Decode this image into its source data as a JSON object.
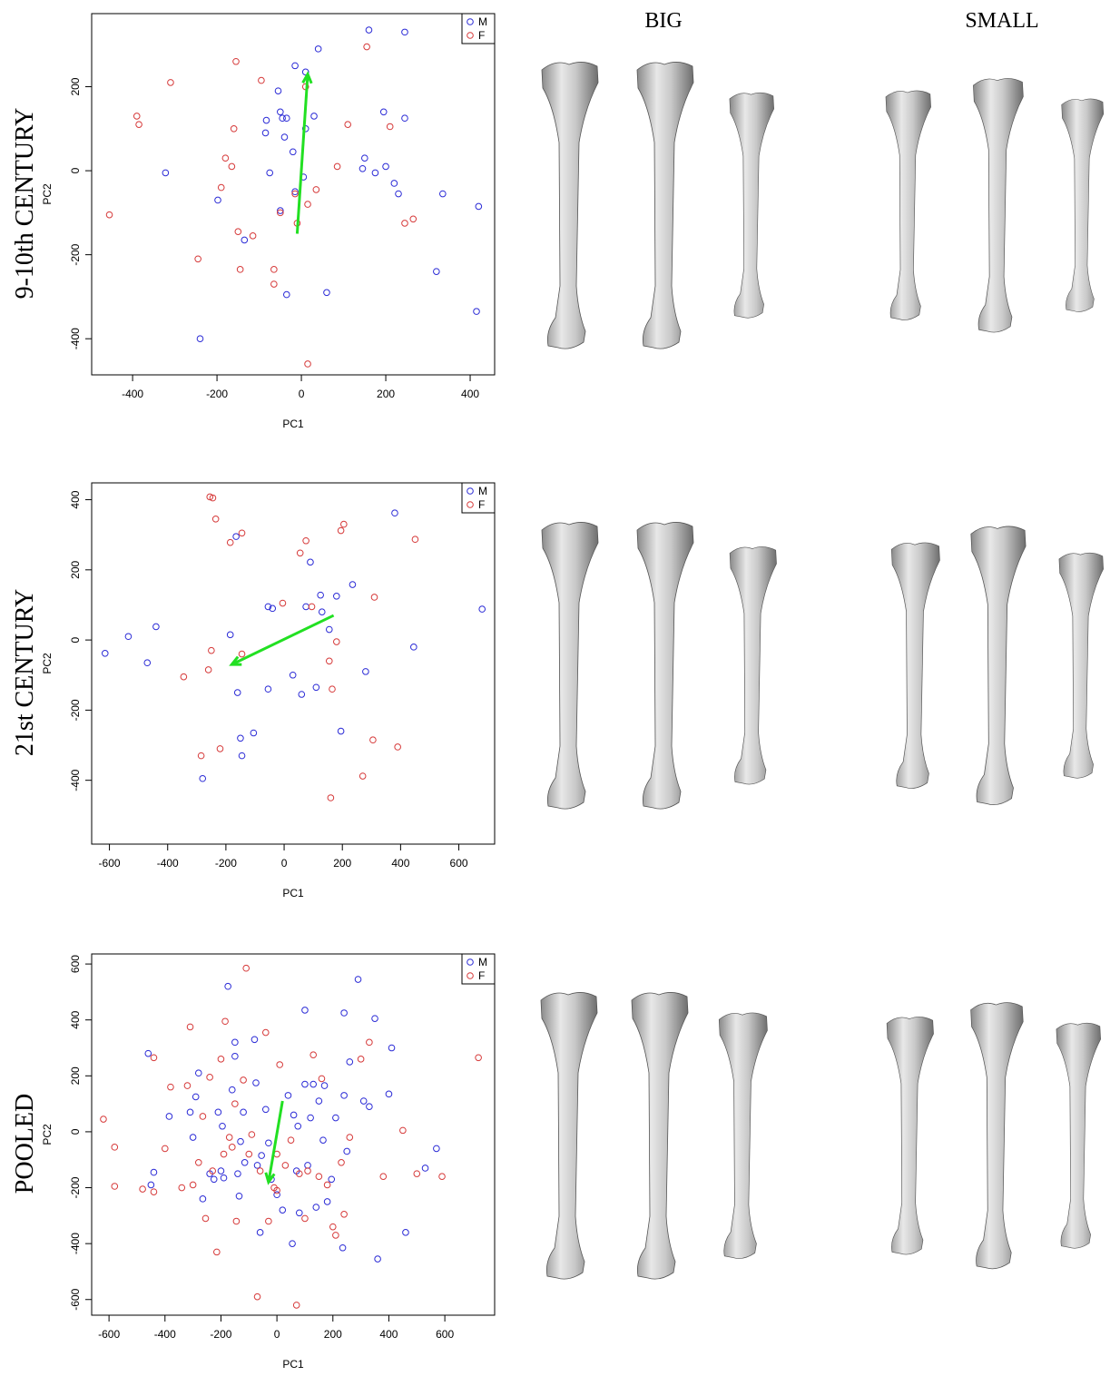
{
  "column_headers": [
    "BIG",
    "SMALL"
  ],
  "chart_data": [
    {
      "type": "scatter",
      "title": "9-10th CENTURY",
      "x_label": "PC1",
      "y_label": "PC2",
      "xlim": [
        -497,
        458
      ],
      "ylim": [
        -486,
        374
      ],
      "xticks": [
        -400,
        -200,
        0,
        200,
        400
      ],
      "yticks": [
        -400,
        -200,
        0,
        200
      ],
      "series": [
        {
          "name": "M",
          "color": "#2b2bd6",
          "x": [
            -322,
            -240,
            -198,
            -135,
            -85,
            -83,
            -75,
            -55,
            -50,
            -45,
            -40,
            -35,
            -50,
            -35,
            -20,
            -15,
            5,
            10,
            10,
            30,
            40,
            60,
            160,
            245,
            145,
            150,
            175,
            195,
            200,
            220,
            230,
            245,
            335,
            320,
            420,
            415,
            -15
          ],
          "values": [
            -5,
            -400,
            -70,
            -165,
            90,
            120,
            -5,
            190,
            140,
            125,
            80,
            125,
            -95,
            -295,
            45,
            250,
            -15,
            235,
            100,
            130,
            290,
            -290,
            335,
            330,
            5,
            30,
            -5,
            140,
            10,
            -30,
            -55,
            125,
            -55,
            -240,
            -85,
            -335,
            -50
          ]
        },
        {
          "name": "F",
          "color": "#d63a3a",
          "x": [
            -455,
            -390,
            -385,
            -310,
            -245,
            -190,
            -180,
            -165,
            -155,
            -160,
            -150,
            -145,
            -115,
            -95,
            -65,
            -65,
            -50,
            -15,
            -10,
            10,
            15,
            15,
            35,
            85,
            110,
            155,
            210,
            245,
            265
          ],
          "values": [
            -105,
            130,
            110,
            210,
            -210,
            -40,
            30,
            10,
            260,
            100,
            -145,
            -235,
            -155,
            215,
            -235,
            -270,
            -100,
            -55,
            -125,
            200,
            -80,
            -460,
            -45,
            10,
            110,
            295,
            105,
            -125,
            -115
          ]
        }
      ],
      "arrow": {
        "color": "#22e022",
        "x": [
          -10,
          15
        ],
        "y": [
          -150,
          230
        ]
      }
    },
    {
      "type": "scatter",
      "title": "21st CENTURY",
      "x_label": "PC1",
      "y_label": "PC2",
      "xlim": [
        -661,
        723
      ],
      "ylim": [
        -582,
        448
      ],
      "xticks": [
        -600,
        -400,
        -200,
        0,
        200,
        400,
        600
      ],
      "yticks": [
        -400,
        -200,
        0,
        200,
        400
      ],
      "series": [
        {
          "name": "M",
          "color": "#2b2bd6",
          "x": [
            -615,
            -535,
            -470,
            -440,
            -280,
            -185,
            -165,
            -160,
            -150,
            -145,
            -105,
            -55,
            -40,
            -55,
            30,
            60,
            75,
            90,
            110,
            125,
            130,
            155,
            180,
            195,
            235,
            280,
            380,
            445,
            680
          ],
          "values": [
            -38,
            10,
            -65,
            38,
            -395,
            15,
            295,
            -150,
            -280,
            -330,
            -265,
            95,
            90,
            -140,
            -100,
            -155,
            95,
            222,
            -135,
            128,
            80,
            30,
            125,
            -260,
            158,
            -90,
            362,
            -20,
            88
          ]
        },
        {
          "name": "F",
          "color": "#d63a3a",
          "x": [
            -345,
            -285,
            -255,
            -245,
            -260,
            -250,
            -235,
            -220,
            -185,
            -145,
            -145,
            -5,
            55,
            75,
            95,
            155,
            160,
            165,
            180,
            195,
            205,
            270,
            305,
            310,
            390,
            450
          ],
          "values": [
            -105,
            -330,
            408,
            405,
            -85,
            -30,
            345,
            -310,
            278,
            -40,
            305,
            105,
            248,
            283,
            95,
            -60,
            -450,
            -140,
            -5,
            312,
            330,
            -388,
            -285,
            122,
            -305,
            287
          ]
        }
      ],
      "arrow": {
        "color": "#22e022",
        "x": [
          170,
          -180
        ],
        "y": [
          70,
          -70
        ]
      }
    },
    {
      "type": "scatter",
      "title": "POOLED",
      "x_label": "PC1",
      "y_label": "PC2",
      "xlim": [
        -662,
        778
      ],
      "ylim": [
        -656,
        636
      ],
      "xticks": [
        -600,
        -400,
        -200,
        0,
        200,
        400,
        600
      ],
      "yticks": [
        -600,
        -400,
        -200,
        0,
        200,
        400,
        600
      ],
      "series": [
        {
          "name": "M",
          "color": "#2b2bd6",
          "x": [
            -460,
            -450,
            -440,
            -385,
            -310,
            -300,
            -290,
            -280,
            -265,
            -240,
            -225,
            -210,
            -200,
            -195,
            -190,
            -175,
            -160,
            -150,
            -150,
            -140,
            -135,
            -130,
            -120,
            -115,
            -80,
            -75,
            -70,
            -60,
            -55,
            -40,
            -30,
            -20,
            0,
            20,
            40,
            55,
            60,
            70,
            75,
            80,
            100,
            110,
            120,
            130,
            140,
            150,
            165,
            170,
            180,
            195,
            210,
            240,
            240,
            250,
            260,
            290,
            310,
            330,
            350,
            360,
            400,
            410,
            460,
            530,
            570,
            235,
            100
          ],
          "values": [
            280,
            -190,
            -145,
            55,
            70,
            -20,
            125,
            210,
            -240,
            -150,
            -170,
            70,
            -140,
            20,
            -165,
            520,
            150,
            320,
            270,
            -150,
            -230,
            -35,
            70,
            -110,
            330,
            175,
            -120,
            -360,
            -85,
            80,
            -40,
            -170,
            -225,
            -280,
            130,
            -400,
            60,
            -140,
            20,
            -290,
            435,
            -120,
            50,
            170,
            -270,
            110,
            -30,
            165,
            -250,
            -170,
            50,
            425,
            130,
            -70,
            250,
            545,
            110,
            90,
            405,
            -455,
            135,
            300,
            -360,
            -130,
            -60,
            -415,
            170
          ]
        },
        {
          "name": "F",
          "color": "#d63a3a",
          "x": [
            -620,
            -580,
            -580,
            -480,
            -440,
            -440,
            -400,
            -380,
            -340,
            -320,
            -310,
            -300,
            -280,
            -265,
            -255,
            -240,
            -230,
            -215,
            -200,
            -190,
            -185,
            -170,
            -160,
            -150,
            -145,
            -120,
            -110,
            -100,
            -90,
            -70,
            -60,
            -40,
            -30,
            -10,
            0,
            0,
            10,
            30,
            50,
            70,
            80,
            100,
            110,
            130,
            150,
            160,
            180,
            200,
            210,
            230,
            240,
            260,
            300,
            330,
            380,
            450,
            500,
            590,
            720
          ],
          "values": [
            45,
            -55,
            -195,
            -205,
            -215,
            265,
            -60,
            160,
            -200,
            165,
            375,
            -190,
            -110,
            55,
            -310,
            195,
            -140,
            -430,
            260,
            -80,
            395,
            -20,
            -55,
            100,
            -320,
            185,
            585,
            -80,
            -10,
            -590,
            -140,
            355,
            -320,
            -200,
            -210,
            -80,
            240,
            -120,
            -30,
            -620,
            -150,
            -310,
            -140,
            275,
            -160,
            190,
            -190,
            -340,
            -370,
            -110,
            -295,
            -20,
            260,
            320,
            -160,
            5,
            -150,
            -160,
            265
          ]
        }
      ],
      "arrow": {
        "color": "#22e022",
        "x": [
          20,
          -30
        ],
        "y": [
          110,
          -180
        ]
      }
    }
  ]
}
